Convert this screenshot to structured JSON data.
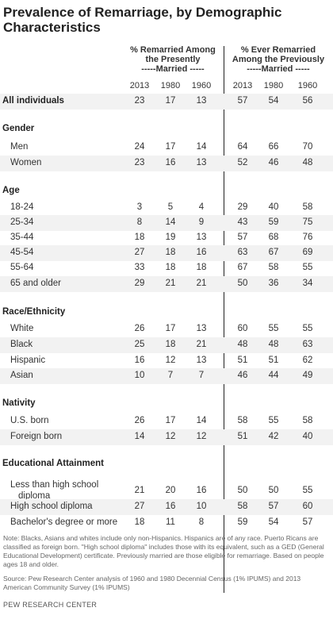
{
  "title": "Prevalence of Remarriage, by Demographic Characteristics",
  "group_headers": {
    "presently_line1": "% Remarried Among",
    "presently_line2": "the Presently",
    "presently_line3": "-----Married -----",
    "ever_line1": "% Ever Remarried",
    "ever_line2": "Among the Previously",
    "ever_line3": "-----Married -----"
  },
  "years": [
    "2013",
    "1980",
    "1960",
    "2013",
    "1980",
    "1960"
  ],
  "rows": [
    {
      "label": "All individuals",
      "bold": true,
      "values": [
        "23",
        "17",
        "13",
        "57",
        "54",
        "56"
      ]
    },
    {
      "section": "Gender"
    },
    {
      "label": "Men",
      "values": [
        "24",
        "17",
        "14",
        "64",
        "66",
        "70"
      ]
    },
    {
      "label": "Women",
      "values": [
        "23",
        "16",
        "13",
        "52",
        "46",
        "48"
      ]
    },
    {
      "section": "Age"
    },
    {
      "label": "18-24",
      "values": [
        "3",
        "5",
        "4",
        "29",
        "40",
        "58"
      ]
    },
    {
      "label": "25-34",
      "values": [
        "8",
        "14",
        "9",
        "43",
        "59",
        "75"
      ]
    },
    {
      "label": "35-44",
      "values": [
        "18",
        "19",
        "13",
        "57",
        "68",
        "76"
      ]
    },
    {
      "label": "45-54",
      "values": [
        "27",
        "18",
        "16",
        "63",
        "67",
        "69"
      ]
    },
    {
      "label": "55-64",
      "values": [
        "33",
        "18",
        "18",
        "67",
        "58",
        "55"
      ]
    },
    {
      "label": "65 and older",
      "values": [
        "29",
        "21",
        "21",
        "50",
        "36",
        "34"
      ]
    },
    {
      "section": "Race/Ethnicity"
    },
    {
      "label": "White",
      "values": [
        "26",
        "17",
        "13",
        "60",
        "55",
        "55"
      ]
    },
    {
      "label": "Black",
      "values": [
        "25",
        "18",
        "21",
        "48",
        "48",
        "63"
      ]
    },
    {
      "label": "Hispanic",
      "values": [
        "16",
        "12",
        "13",
        "51",
        "51",
        "62"
      ]
    },
    {
      "label": "Asian",
      "values": [
        "10",
        "7",
        "7",
        "46",
        "44",
        "49"
      ]
    },
    {
      "section": "Nativity"
    },
    {
      "label": "U.S. born",
      "values": [
        "26",
        "17",
        "14",
        "58",
        "55",
        "58"
      ]
    },
    {
      "label": "Foreign born",
      "values": [
        "14",
        "12",
        "12",
        "51",
        "42",
        "40"
      ]
    },
    {
      "section": "Educational Attainment"
    },
    {
      "label": "Less than high school diploma",
      "label_line1": "Less than high school",
      "label_line2": "diploma",
      "values": [
        "21",
        "20",
        "16",
        "50",
        "50",
        "55"
      ]
    },
    {
      "label": "High school diploma",
      "values": [
        "27",
        "16",
        "10",
        "58",
        "57",
        "60"
      ]
    },
    {
      "label": "Bachelor's degree or more",
      "values": [
        "18",
        "11",
        "8",
        "59",
        "54",
        "57"
      ]
    }
  ],
  "note": "Note: Blacks, Asians and whites include only non-Hispanics. Hispanics are of any race. Puerto Ricans are classified as foreign born. \"High school diploma\" includes those with its equivalent, such as a GED (General Educational Development) certificate. Previously married are those eligible for remarriage. Based on people ages 18 and older.",
  "source": "Source: Pew Research Center analysis of 1960 and 1980 Decennial Census (1% IPUMS) and 2013 American Community Survey (1% IPUMS)",
  "branding": "PEW RESEARCH CENTER"
}
